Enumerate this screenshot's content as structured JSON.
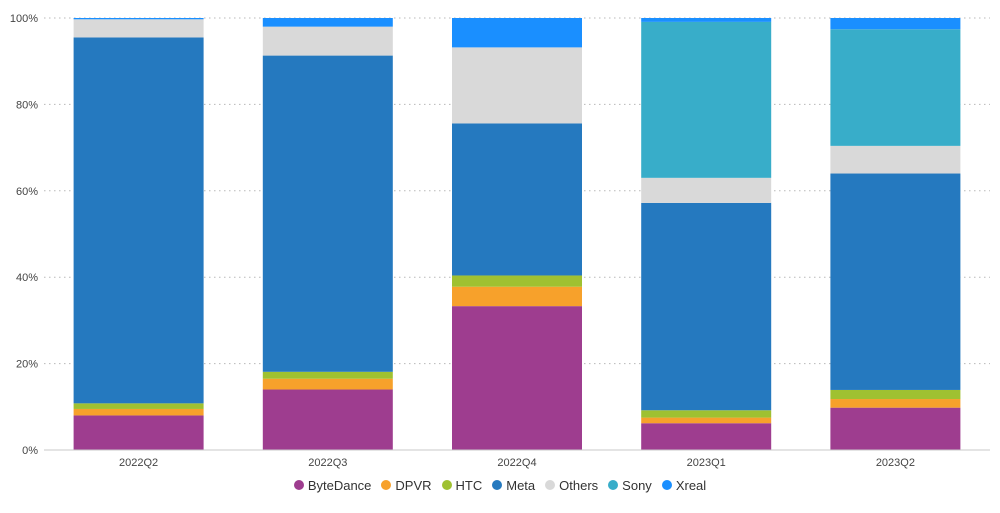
{
  "chart_data": {
    "type": "bar",
    "stacked": true,
    "normalized": true,
    "categories": [
      "2022Q2",
      "2022Q3",
      "2022Q4",
      "2023Q1",
      "2023Q2"
    ],
    "series": [
      {
        "name": "ByteDance",
        "color": "#9e3d8f",
        "values": [
          8.0,
          14.0,
          33.3,
          6.2,
          9.8
        ]
      },
      {
        "name": "DPVR",
        "color": "#f7a12b",
        "values": [
          1.5,
          2.5,
          4.5,
          1.3,
          2.0
        ]
      },
      {
        "name": "HTC",
        "color": "#9fc131",
        "values": [
          1.3,
          1.6,
          2.6,
          1.7,
          2.1
        ]
      },
      {
        "name": "Meta",
        "color": "#2579bf",
        "values": [
          84.7,
          73.2,
          35.2,
          48.0,
          50.1
        ]
      },
      {
        "name": "Others",
        "color": "#d9d9d9",
        "values": [
          4.2,
          6.7,
          17.6,
          5.8,
          6.4
        ]
      },
      {
        "name": "Sony",
        "color": "#38adc9",
        "values": [
          0.0,
          0.0,
          0.0,
          36.1,
          27.0
        ]
      },
      {
        "name": "Xreal",
        "color": "#1a8fff",
        "values": [
          0.3,
          2.0,
          6.8,
          0.9,
          2.6
        ]
      }
    ],
    "yticks": [
      "0%",
      "20%",
      "40%",
      "60%",
      "80%",
      "100%"
    ],
    "ylim": [
      0,
      100
    ],
    "grid": true,
    "legend_position": "bottom"
  }
}
